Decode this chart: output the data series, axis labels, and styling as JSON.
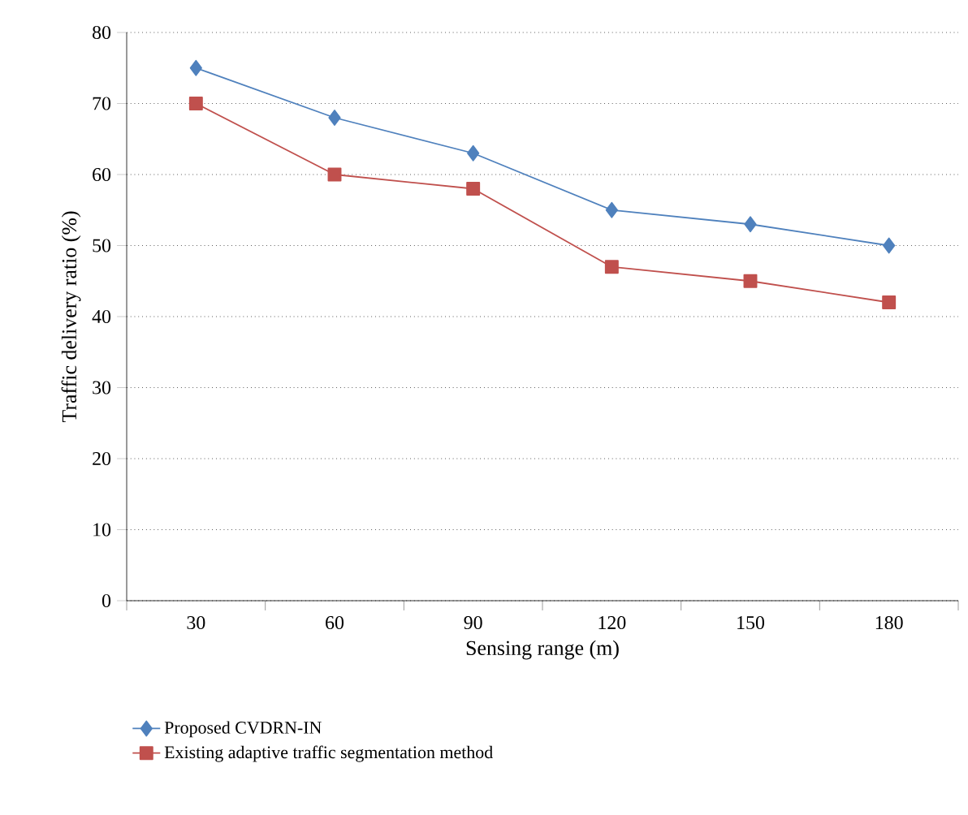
{
  "chart_data": {
    "type": "line",
    "xlabel": "Sensing range (m)",
    "ylabel": "Traffic delivery ratio (%)",
    "categories": [
      "30",
      "60",
      "90",
      "120",
      "150",
      "180"
    ],
    "series": [
      {
        "name": "Proposed CVDRN-IN",
        "color": "#4f81bd",
        "marker": "diamond",
        "values": [
          75,
          68,
          63,
          55,
          53,
          50
        ]
      },
      {
        "name": "Existing adaptive traffic segmentation method",
        "color": "#c0504d",
        "marker": "square",
        "values": [
          70,
          60,
          58,
          47,
          45,
          42
        ]
      }
    ],
    "ylim": [
      0,
      80
    ],
    "yticks": [
      0,
      10,
      20,
      30,
      40,
      50,
      60,
      70,
      80
    ],
    "grid": "y",
    "legend": "bottom",
    "line_style": "solid"
  }
}
